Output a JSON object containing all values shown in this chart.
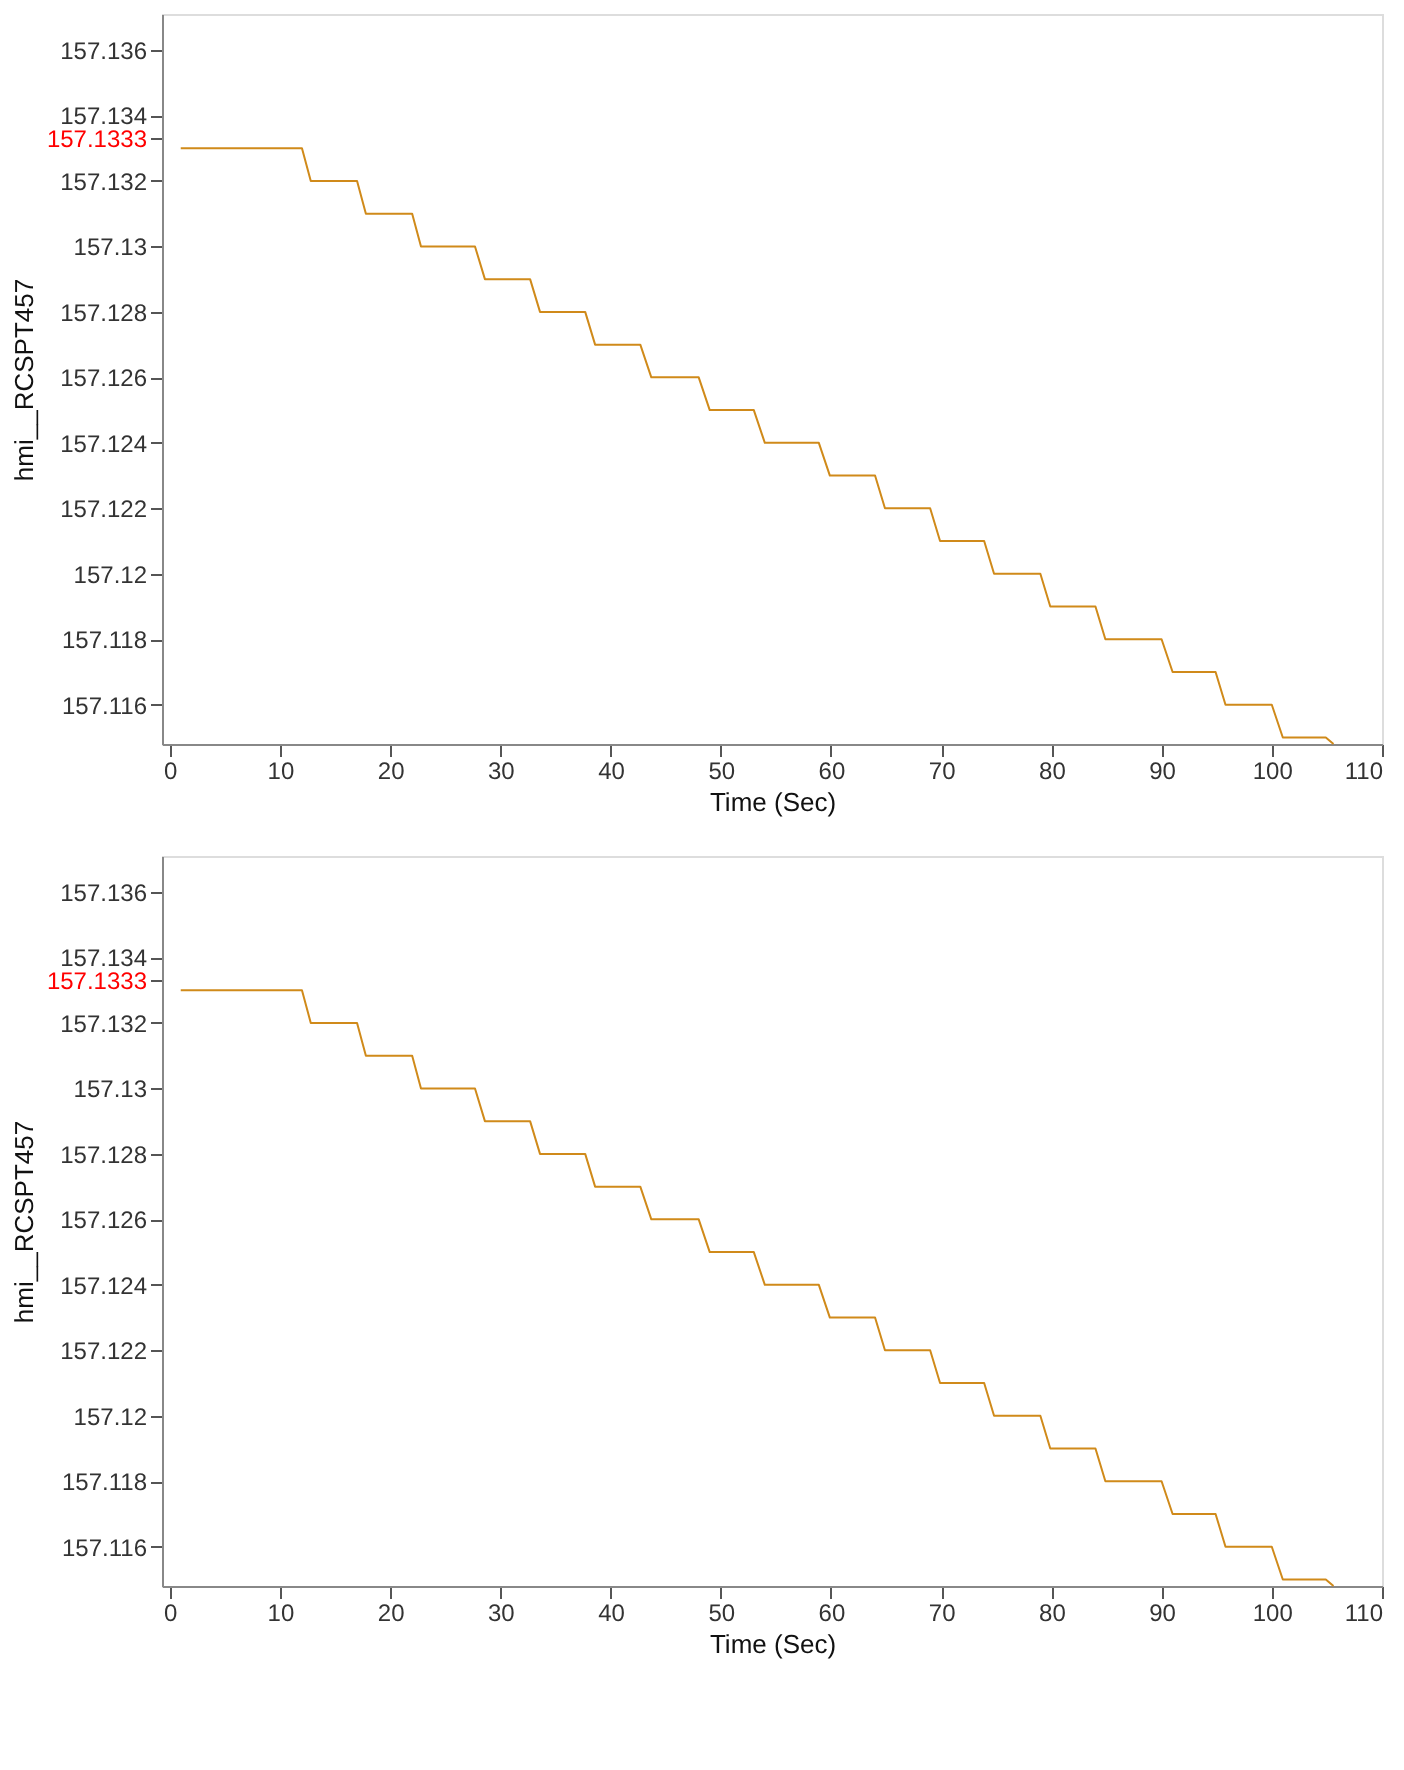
{
  "chart_data": [
    {
      "type": "line",
      "xlabel": "Time (Sec)",
      "ylabel": "hmi__RCSPT457",
      "xlim": [
        -0.7,
        110
      ],
      "xticks": [
        0,
        10,
        20,
        30,
        40,
        50,
        60,
        70,
        80,
        90,
        100,
        110
      ],
      "ylim": [
        157.1148,
        157.1371
      ],
      "yticks": [
        157.116,
        157.118,
        157.12,
        157.122,
        157.124,
        157.126,
        157.128,
        157.13,
        157.132,
        {
          "value": 157.1333,
          "label": "157.1333"
        },
        157.134,
        157.136
      ],
      "grid": false,
      "marker": "none",
      "line_style": "solid",
      "x": [
        1,
        12,
        12.8,
        17,
        17.8,
        22,
        22.8,
        27.7,
        28.6,
        32.7,
        33.6,
        37.7,
        38.6,
        42.7,
        43.7,
        48,
        49,
        53,
        54,
        58.9,
        59.9,
        64,
        64.9,
        69,
        69.9,
        73.9,
        74.8,
        79,
        79.9,
        84,
        84.9,
        90,
        91,
        94.9,
        95.8,
        100,
        101,
        104.9,
        105.6
      ],
      "series": [
        {
          "color": "#d08a1a",
          "values": [
            157.133,
            157.133,
            157.132,
            157.132,
            157.131,
            157.131,
            157.13,
            157.13,
            157.129,
            157.129,
            157.128,
            157.128,
            157.127,
            157.127,
            157.126,
            157.126,
            157.125,
            157.125,
            157.124,
            157.124,
            157.123,
            157.123,
            157.122,
            157.122,
            157.121,
            157.121,
            157.12,
            157.12,
            157.119,
            157.119,
            157.118,
            157.118,
            157.117,
            157.117,
            157.116,
            157.116,
            157.115,
            157.115,
            157.1148
          ]
        }
      ]
    },
    {
      "type": "line",
      "xlabel": "Time (Sec)",
      "ylabel": "hmi__RCSPT457",
      "xlim": [
        -0.7,
        110
      ],
      "xticks": [
        0,
        10,
        20,
        30,
        40,
        50,
        60,
        70,
        80,
        90,
        100,
        110
      ],
      "ylim": [
        157.1148,
        157.1371
      ],
      "yticks": [
        157.116,
        157.118,
        157.12,
        157.122,
        157.124,
        157.126,
        157.128,
        157.13,
        157.132,
        {
          "value": 157.1333,
          "label": "157.1333"
        },
        157.134,
        157.136
      ],
      "grid": false,
      "marker": "none",
      "line_style": "solid",
      "x": [
        1,
        12,
        12.8,
        17,
        17.8,
        22,
        22.8,
        27.7,
        28.6,
        32.7,
        33.6,
        37.7,
        38.6,
        42.7,
        43.7,
        48,
        49,
        53,
        54,
        58.9,
        59.9,
        64,
        64.9,
        69,
        69.9,
        73.9,
        74.8,
        79,
        79.9,
        84,
        84.9,
        90,
        91,
        94.9,
        95.8,
        100,
        101,
        104.9,
        105.6
      ],
      "series": [
        {
          "color": "#d08a1a",
          "values": [
            157.133,
            157.133,
            157.132,
            157.132,
            157.131,
            157.131,
            157.13,
            157.13,
            157.129,
            157.129,
            157.128,
            157.128,
            157.127,
            157.127,
            157.126,
            157.126,
            157.125,
            157.125,
            157.124,
            157.124,
            157.123,
            157.123,
            157.122,
            157.122,
            157.121,
            157.121,
            157.12,
            157.12,
            157.119,
            157.119,
            157.118,
            157.118,
            157.117,
            157.117,
            157.116,
            157.116,
            157.115,
            157.115,
            157.1148
          ]
        }
      ]
    }
  ]
}
